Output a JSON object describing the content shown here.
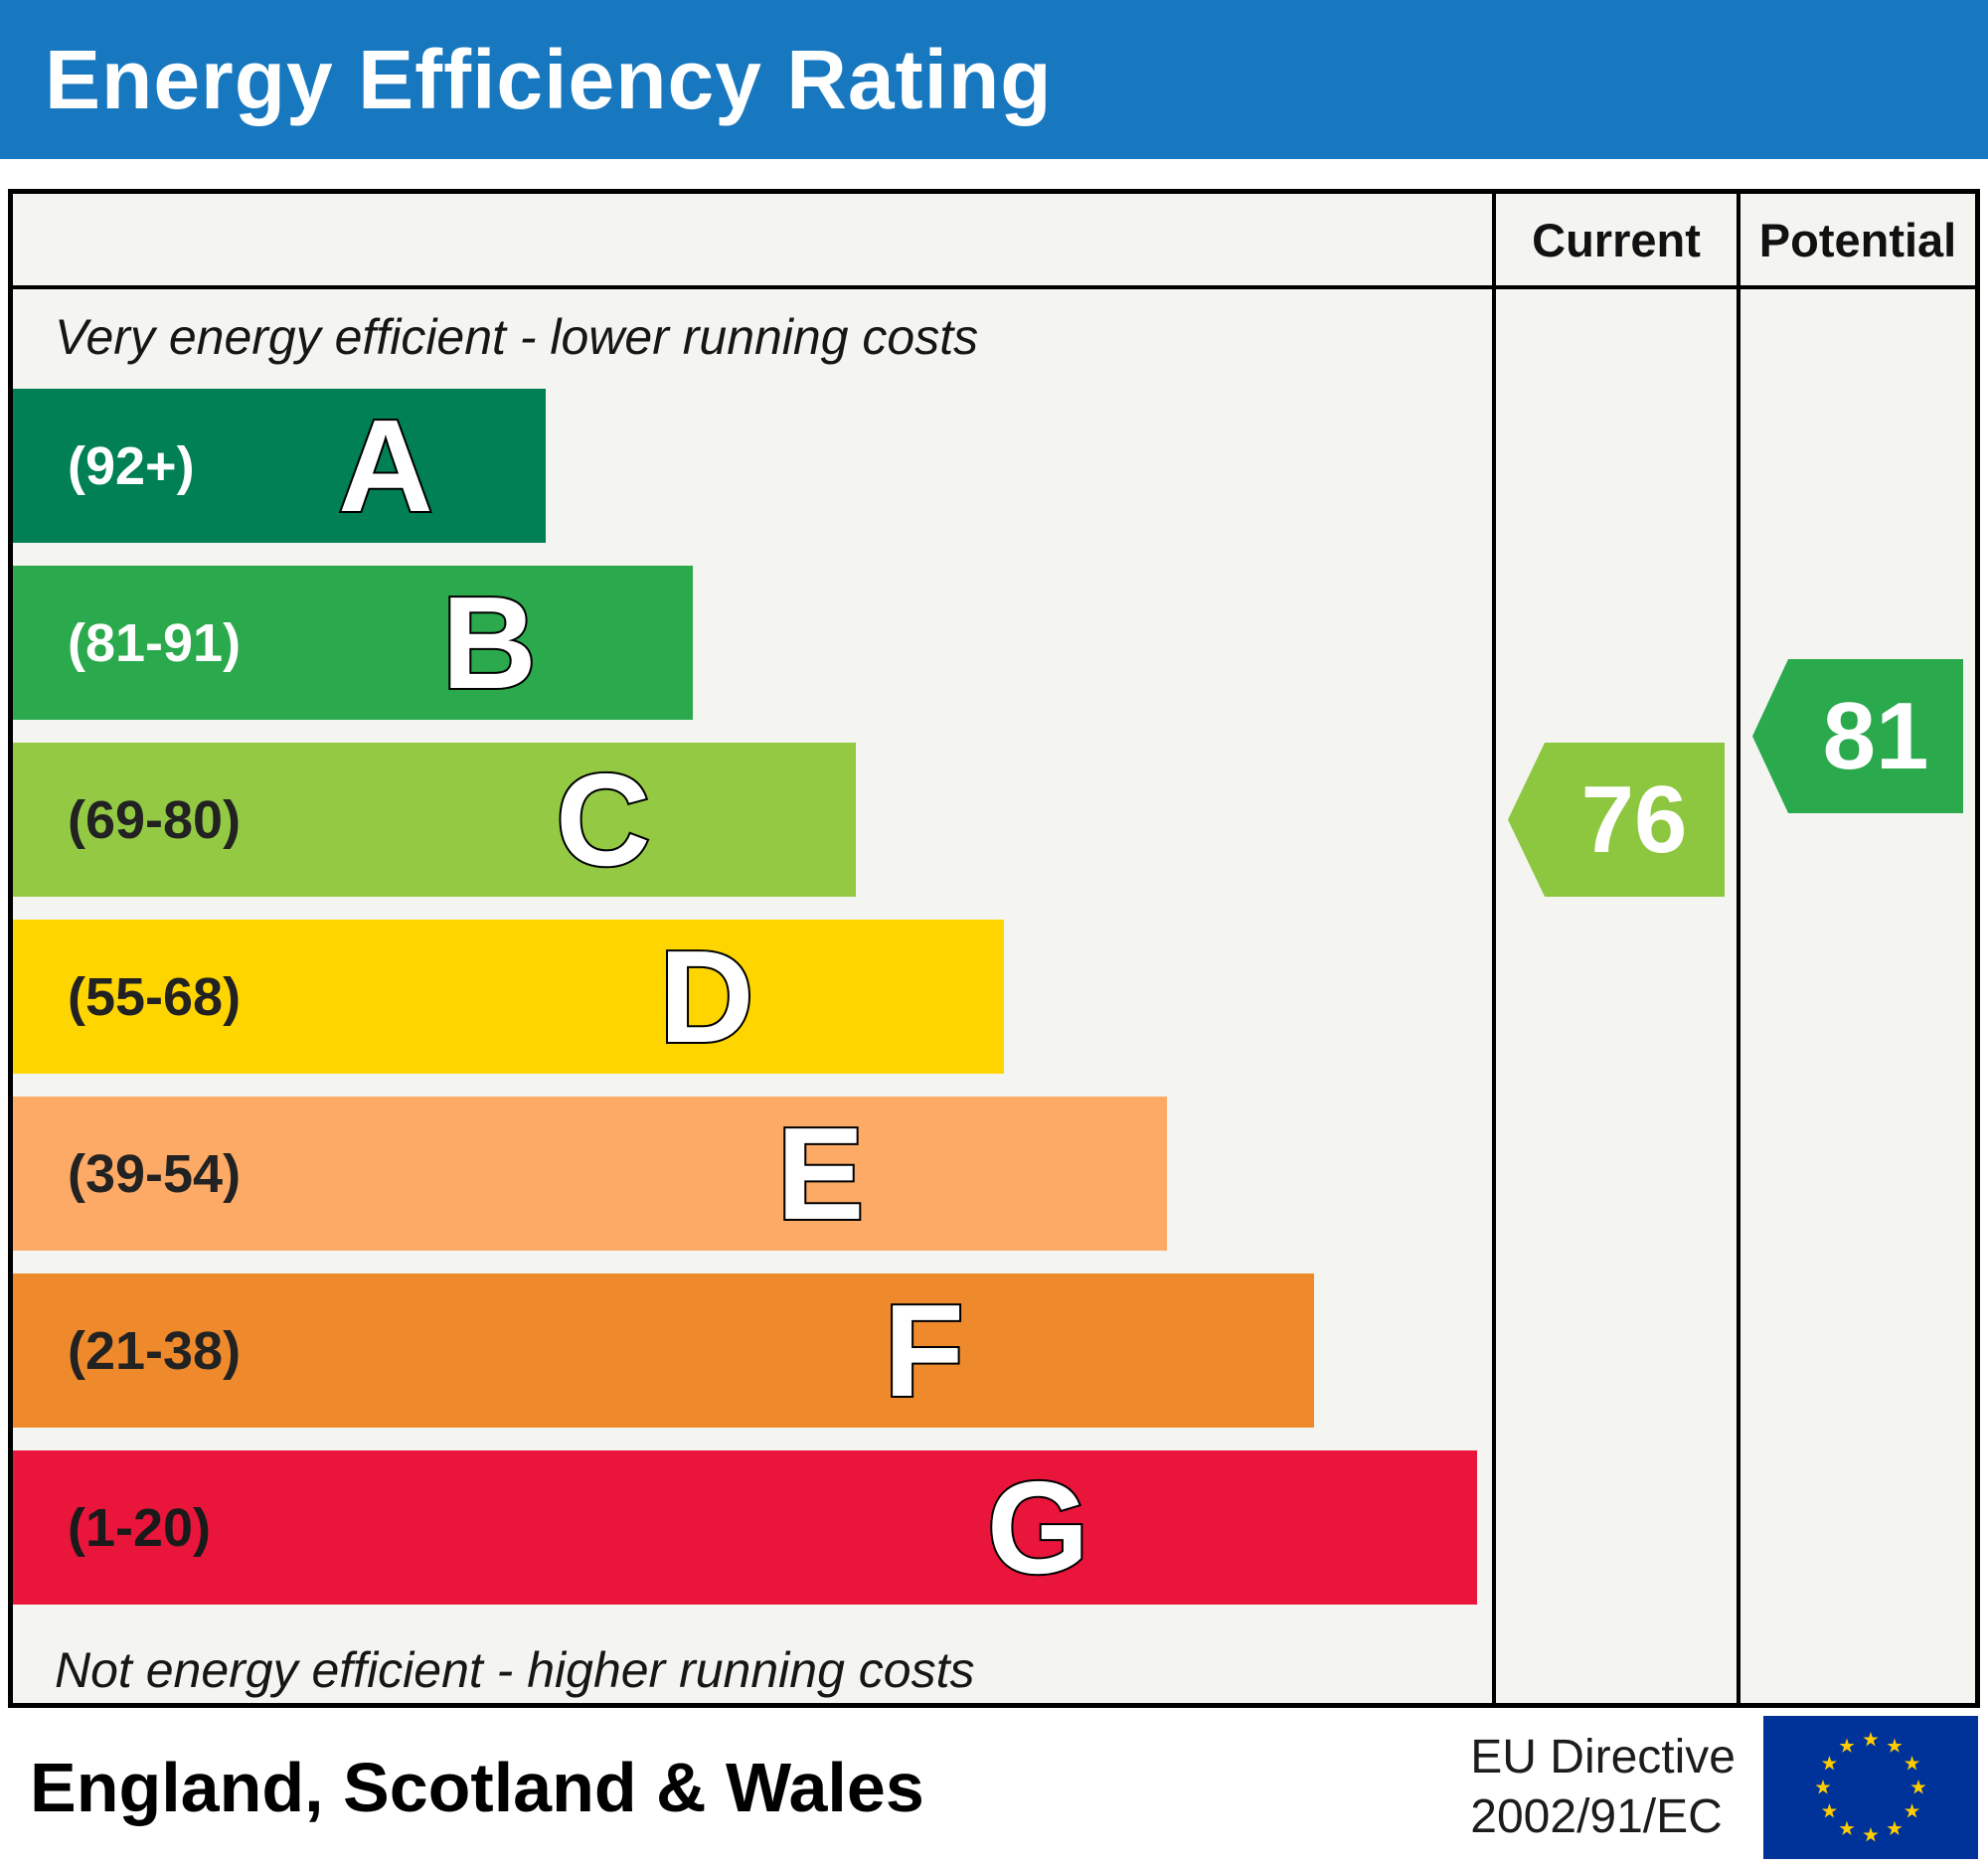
{
  "header": {
    "title": "Energy Efficiency Rating",
    "background_color": "#1878bf"
  },
  "columns": {
    "current_label": "Current",
    "potential_label": "Potential"
  },
  "notes": {
    "top": "Very energy efficient - lower running costs",
    "bottom": "Not energy efficient - higher running costs"
  },
  "footer": {
    "region": "England, Scotland & Wales",
    "directive_line1": "EU Directive",
    "directive_line2": "2002/91/EC",
    "flag_colors": {
      "field": "#003399",
      "stars": "#ffcc00"
    }
  },
  "chart_data": {
    "type": "bar",
    "title": "Energy Efficiency Rating",
    "legend": [
      "Current",
      "Potential"
    ],
    "bands": [
      {
        "letter": "A",
        "range_label": "(92+)",
        "range_min": 92,
        "range_max": 100,
        "color": "#008054",
        "width_pct": 36,
        "label_color": "#ffffff"
      },
      {
        "letter": "B",
        "range_label": "(81-91)",
        "range_min": 81,
        "range_max": 91,
        "color": "#2aa94d",
        "width_pct": 46,
        "label_color": "#ffffff"
      },
      {
        "letter": "C",
        "range_label": "(69-80)",
        "range_min": 69,
        "range_max": 80,
        "color": "#94ca43",
        "width_pct": 57,
        "label_color": "#222222"
      },
      {
        "letter": "D",
        "range_label": "(55-68)",
        "range_min": 55,
        "range_max": 68,
        "color": "#ffd500",
        "width_pct": 67,
        "label_color": "#222222"
      },
      {
        "letter": "E",
        "range_label": "(39-54)",
        "range_min": 39,
        "range_max": 54,
        "color": "#fcaa65",
        "width_pct": 78,
        "label_color": "#222222"
      },
      {
        "letter": "F",
        "range_label": "(21-38)",
        "range_min": 21,
        "range_max": 38,
        "color": "#ef8a2c",
        "width_pct": 88,
        "label_color": "#222222"
      },
      {
        "letter": "G",
        "range_label": "(1-20)",
        "range_min": 1,
        "range_max": 20,
        "color": "#e9153b",
        "width_pct": 99,
        "label_color": "#1a1a1a"
      }
    ],
    "current": {
      "value": 76,
      "band": "C",
      "color": "#8dc63f"
    },
    "potential": {
      "value": 81,
      "band": "B",
      "color": "#2aa94d"
    }
  }
}
